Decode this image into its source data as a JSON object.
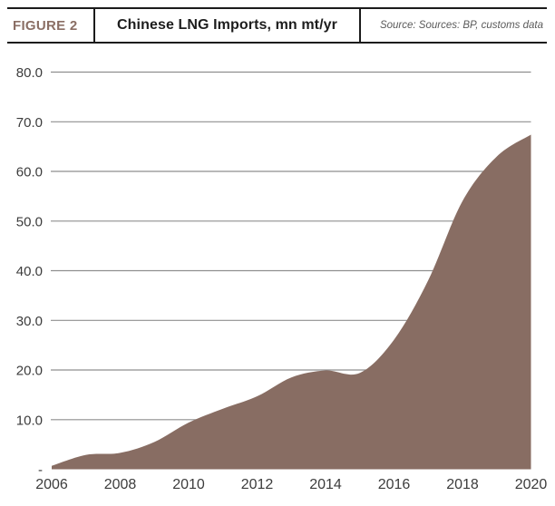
{
  "figure": {
    "label": "FIGURE 2",
    "title": "Chinese LNG Imports, mn mt/yr",
    "source": "Source: Sources: BP, customs data"
  },
  "colors": {
    "area_fill": "#886d63",
    "figure_label_text": "#8a6e64",
    "gridline": "#8f8f8f",
    "axis_text": "#3c3c3c",
    "header_border": "#1b1b1b",
    "title_text": "#1d1d1d",
    "source_text": "#5a5a5a"
  },
  "chart_data": {
    "type": "area",
    "title": "Chinese LNG Imports, mn mt/yr",
    "xlabel": "",
    "ylabel": "mn mt/yr",
    "x": [
      2006,
      2007,
      2008,
      2009,
      2010,
      2011,
      2012,
      2013,
      2014,
      2015,
      2016,
      2017,
      2018,
      2019,
      2020
    ],
    "series": [
      {
        "name": "Chinese LNG imports",
        "values": [
          0.7,
          2.9,
          3.3,
          5.5,
          9.4,
          12.2,
          14.7,
          18.5,
          19.9,
          19.4,
          26.1,
          38.1,
          54.0,
          63.0,
          67.4
        ]
      }
    ],
    "xlim": [
      2006,
      2020
    ],
    "ylim": [
      0,
      80
    ],
    "y_ticks": [
      {
        "value": 80,
        "label": "80.0"
      },
      {
        "value": 70,
        "label": "70.0"
      },
      {
        "value": 60,
        "label": "60.0"
      },
      {
        "value": 50,
        "label": "50.0"
      },
      {
        "value": 40,
        "label": "40.0"
      },
      {
        "value": 30,
        "label": "30.0"
      },
      {
        "value": 20,
        "label": "20.0"
      },
      {
        "value": 10,
        "label": "10.0"
      },
      {
        "value": 0,
        "label": "-"
      }
    ],
    "x_ticks": [
      {
        "value": 2006,
        "label": "2006"
      },
      {
        "value": 2008,
        "label": "2008"
      },
      {
        "value": 2010,
        "label": "2010"
      },
      {
        "value": 2012,
        "label": "2012"
      },
      {
        "value": 2014,
        "label": "2014"
      },
      {
        "value": 2016,
        "label": "2016"
      },
      {
        "value": 2018,
        "label": "2018"
      },
      {
        "value": 2020,
        "label": "2020"
      }
    ],
    "grid": "horizontal",
    "legend": "none",
    "line_smoothing": true
  }
}
